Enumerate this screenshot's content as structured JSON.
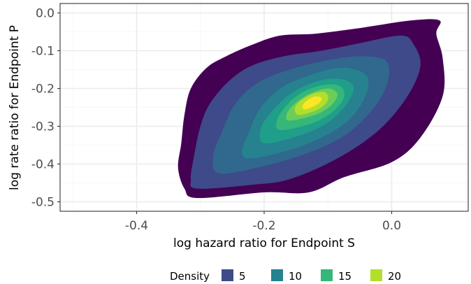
{
  "chart_data": {
    "type": "contour-density",
    "xlabel": "log hazard ratio for Endpoint S",
    "ylabel": "log rate ratio for Endpoint P",
    "xlim": [
      -0.52,
      0.12
    ],
    "ylim": [
      -0.525,
      0.025
    ],
    "x_ticks": [
      -0.4,
      -0.2,
      0.0
    ],
    "x_tick_labels": [
      "-0.4",
      "-0.2",
      "0.0"
    ],
    "y_ticks": [
      0.0,
      -0.1,
      -0.2,
      -0.3,
      -0.4,
      -0.5
    ],
    "y_tick_labels": [
      "0.0",
      "-0.1",
      "-0.2",
      "-0.3",
      "-0.4",
      "-0.5"
    ],
    "grid": true,
    "density_center": [
      -0.125,
      -0.23
    ],
    "contours": [
      {
        "level": 2.5,
        "color": "#440154",
        "points": [
          [
            -0.305,
            -0.49
          ],
          [
            -0.2,
            -0.475
          ],
          [
            -0.13,
            -0.475
          ],
          [
            -0.075,
            -0.435
          ],
          [
            0.0,
            -0.395
          ],
          [
            0.045,
            -0.33
          ],
          [
            0.08,
            -0.22
          ],
          [
            0.08,
            -0.12
          ],
          [
            0.07,
            -0.055
          ],
          [
            0.075,
            -0.02
          ],
          [
            0.03,
            -0.02
          ],
          [
            -0.05,
            -0.04
          ],
          [
            -0.12,
            -0.055
          ],
          [
            -0.175,
            -0.06
          ],
          [
            -0.22,
            -0.085
          ],
          [
            -0.26,
            -0.115
          ],
          [
            -0.29,
            -0.145
          ],
          [
            -0.315,
            -0.2
          ],
          [
            -0.325,
            -0.27
          ],
          [
            -0.33,
            -0.345
          ],
          [
            -0.335,
            -0.41
          ],
          [
            -0.325,
            -0.465
          ]
        ]
      },
      {
        "level": 5,
        "color": "#3E4A89",
        "points": [
          [
            -0.305,
            -0.465
          ],
          [
            -0.22,
            -0.455
          ],
          [
            -0.16,
            -0.44
          ],
          [
            -0.085,
            -0.385
          ],
          [
            -0.02,
            -0.31
          ],
          [
            0.025,
            -0.22
          ],
          [
            0.045,
            -0.14
          ],
          [
            0.035,
            -0.085
          ],
          [
            0.015,
            -0.06
          ],
          [
            -0.05,
            -0.08
          ],
          [
            -0.11,
            -0.1
          ],
          [
            -0.17,
            -0.115
          ],
          [
            -0.22,
            -0.14
          ],
          [
            -0.255,
            -0.18
          ],
          [
            -0.285,
            -0.24
          ],
          [
            -0.3,
            -0.3
          ],
          [
            -0.31,
            -0.38
          ],
          [
            -0.315,
            -0.44
          ]
        ]
      },
      {
        "level": 7.5,
        "color": "#31688E",
        "points": [
          [
            -0.27,
            -0.425
          ],
          [
            -0.2,
            -0.405
          ],
          [
            -0.13,
            -0.37
          ],
          [
            -0.07,
            -0.32
          ],
          [
            -0.025,
            -0.245
          ],
          [
            -0.005,
            -0.175
          ],
          [
            -0.01,
            -0.125
          ],
          [
            -0.05,
            -0.115
          ],
          [
            -0.1,
            -0.125
          ],
          [
            -0.16,
            -0.15
          ],
          [
            -0.21,
            -0.185
          ],
          [
            -0.245,
            -0.24
          ],
          [
            -0.265,
            -0.31
          ],
          [
            -0.28,
            -0.38
          ]
        ]
      },
      {
        "level": 10,
        "color": "#26828E",
        "points": [
          [
            -0.22,
            -0.385
          ],
          [
            -0.165,
            -0.365
          ],
          [
            -0.11,
            -0.33
          ],
          [
            -0.065,
            -0.28
          ],
          [
            -0.04,
            -0.215
          ],
          [
            -0.04,
            -0.165
          ],
          [
            -0.075,
            -0.145
          ],
          [
            -0.12,
            -0.16
          ],
          [
            -0.17,
            -0.195
          ],
          [
            -0.205,
            -0.25
          ],
          [
            -0.225,
            -0.32
          ],
          [
            -0.235,
            -0.37
          ]
        ]
      },
      {
        "level": 12.5,
        "color": "#1F9E89",
        "points": [
          [
            -0.2,
            -0.345
          ],
          [
            -0.145,
            -0.325
          ],
          [
            -0.1,
            -0.29
          ],
          [
            -0.07,
            -0.24
          ],
          [
            -0.06,
            -0.195
          ],
          [
            -0.08,
            -0.175
          ],
          [
            -0.115,
            -0.18
          ],
          [
            -0.155,
            -0.21
          ],
          [
            -0.185,
            -0.255
          ],
          [
            -0.205,
            -0.305
          ]
        ]
      },
      {
        "level": 15,
        "color": "#35B779",
        "points": [
          [
            -0.175,
            -0.31
          ],
          [
            -0.13,
            -0.295
          ],
          [
            -0.095,
            -0.265
          ],
          [
            -0.075,
            -0.225
          ],
          [
            -0.08,
            -0.195
          ],
          [
            -0.105,
            -0.19
          ],
          [
            -0.14,
            -0.21
          ],
          [
            -0.165,
            -0.245
          ],
          [
            -0.18,
            -0.285
          ]
        ]
      },
      {
        "level": 17.5,
        "color": "#6DCD59",
        "points": [
          [
            -0.16,
            -0.285
          ],
          [
            -0.12,
            -0.27
          ],
          [
            -0.095,
            -0.245
          ],
          [
            -0.085,
            -0.215
          ],
          [
            -0.1,
            -0.2
          ],
          [
            -0.13,
            -0.215
          ],
          [
            -0.155,
            -0.245
          ],
          [
            -0.165,
            -0.27
          ]
        ]
      },
      {
        "level": 20,
        "color": "#B4DE2C",
        "points": [
          [
            -0.145,
            -0.27
          ],
          [
            -0.115,
            -0.255
          ],
          [
            -0.1,
            -0.23
          ],
          [
            -0.105,
            -0.21
          ],
          [
            -0.125,
            -0.215
          ],
          [
            -0.145,
            -0.235
          ],
          [
            -0.152,
            -0.255
          ]
        ]
      },
      {
        "level": 22.5,
        "color": "#FDE725",
        "points": [
          [
            -0.135,
            -0.255
          ],
          [
            -0.115,
            -0.24
          ],
          [
            -0.11,
            -0.225
          ],
          [
            -0.122,
            -0.222
          ],
          [
            -0.135,
            -0.235
          ],
          [
            -0.14,
            -0.248
          ]
        ]
      }
    ],
    "legend": {
      "title": "Density",
      "position": "bottom",
      "entries": [
        {
          "label": "5",
          "color": "#3E4A89"
        },
        {
          "label": "10",
          "color": "#26828E"
        },
        {
          "label": "15",
          "color": "#35B779"
        },
        {
          "label": "20",
          "color": "#B4DE2C"
        }
      ]
    },
    "colors": {
      "panel_border": "#333333",
      "grid_major": "#ebebeb",
      "grid_minor": "#f5f5f5",
      "tick_text": "#4d4d4d"
    }
  }
}
